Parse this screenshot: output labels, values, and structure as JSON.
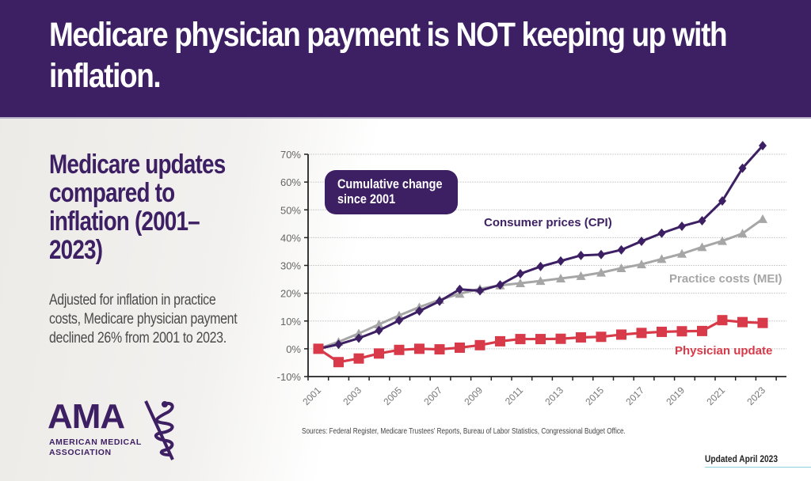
{
  "banner": {
    "title": "Medicare physician payment is NOT keeping up with inflation."
  },
  "sidebar": {
    "title": "Medicare updates compared to inflation (2001–2023)",
    "body": "Adjusted for inflation in practice costs, Medicare physician payment declined 26% from 2001 to 2023."
  },
  "logo": {
    "abbr": "AMA",
    "line1": "AMERICAN MEDICAL",
    "line2": "ASSOCIATION",
    "icon": "staff-of-asclepius-icon"
  },
  "callout": {
    "text": "Cumulative change since 2001"
  },
  "footer": {
    "sources": "Sources: Federal Register, Medicare Trustees’ Reports, Bureau of Labor Statistics, Congressional Budget Office.",
    "updated": "Updated April 2023"
  },
  "colors": {
    "brand_purple": "#3d1f63",
    "cpi": "#3d1f63",
    "mei": "#a6a6a6",
    "physician": "#d83a49",
    "grid": "#cfcfcf"
  },
  "chart_data": {
    "type": "line",
    "title": "Medicare updates compared to inflation (2001–2023)",
    "subtitle": "Cumulative change since 2001",
    "xlabel": "",
    "ylabel": "",
    "x": [
      2001,
      2002,
      2003,
      2004,
      2005,
      2006,
      2007,
      2008,
      2009,
      2010,
      2011,
      2012,
      2013,
      2014,
      2015,
      2016,
      2017,
      2018,
      2019,
      2020,
      2021,
      2022,
      2023
    ],
    "x_tick_labels": [
      "2001",
      "2003",
      "2005",
      "2007",
      "2009",
      "2011",
      "2013",
      "2015",
      "2017",
      "2019",
      "2021",
      "2023"
    ],
    "y_tick_labels": [
      "-10%",
      "0%",
      "10%",
      "20%",
      "30%",
      "40%",
      "50%",
      "60%",
      "70%"
    ],
    "y_ticks": [
      -10,
      0,
      10,
      20,
      30,
      40,
      50,
      60,
      70
    ],
    "ylim": [
      -10,
      70
    ],
    "xlim": [
      2000.5,
      2024.5
    ],
    "grid": true,
    "series": [
      {
        "name": "Consumer prices (CPI)",
        "marker": "diamond",
        "values": [
          0,
          1.6,
          3.8,
          6.6,
          10.2,
          13.6,
          17.1,
          21.4,
          20.9,
          23.0,
          27.0,
          29.6,
          31.6,
          33.6,
          33.9,
          35.6,
          38.7,
          41.6,
          44.1,
          46.1,
          53.2,
          65.0,
          73.1
        ]
      },
      {
        "name": "Practice costs (MEI)",
        "marker": "triangle",
        "values": [
          0,
          2.5,
          5.5,
          8.8,
          12.0,
          15.0,
          17.6,
          19.8,
          21.6,
          22.8,
          23.6,
          24.4,
          25.3,
          26.2,
          27.4,
          29.0,
          30.4,
          32.3,
          34.2,
          36.6,
          38.8,
          41.5,
          46.7
        ]
      },
      {
        "name": "Physician update",
        "marker": "square",
        "values": [
          0,
          -4.8,
          -3.5,
          -1.7,
          -0.4,
          0,
          -0.2,
          0.4,
          1.3,
          2.7,
          3.5,
          3.5,
          3.6,
          4.1,
          4.3,
          5.1,
          5.7,
          6.1,
          6.3,
          6.4,
          10.3,
          9.6,
          9.3
        ]
      }
    ]
  }
}
